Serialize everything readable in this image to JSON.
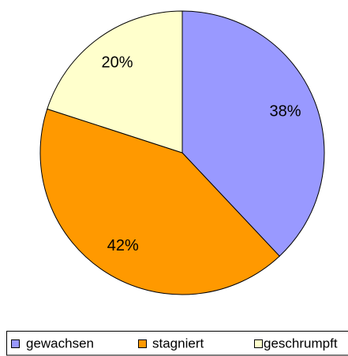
{
  "chart_data": {
    "type": "pie",
    "categories": [
      "gewachsen",
      "stagniert",
      "geschrumpft"
    ],
    "values": [
      38,
      42,
      20
    ],
    "value_labels": [
      "38%",
      "42%",
      "20%"
    ],
    "colors": [
      "#9999ff",
      "#ff9900",
      "#ffffcc"
    ],
    "legend": "bottom"
  }
}
